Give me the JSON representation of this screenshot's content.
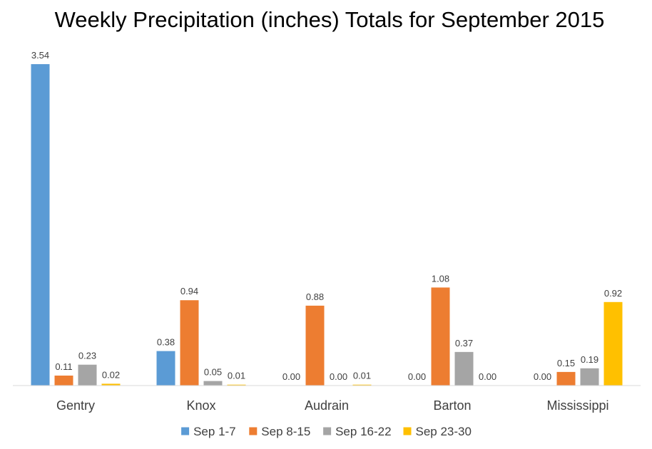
{
  "chart_data": {
    "type": "bar",
    "title": "Weekly Precipitation (inches) Totals for September 2015",
    "xlabel": "",
    "ylabel": "",
    "ylim": [
      0,
      3.54
    ],
    "grid": false,
    "legend_position": "bottom",
    "categories": [
      "Gentry",
      "Knox",
      "Audrain",
      "Barton",
      "Mississippi"
    ],
    "series": [
      {
        "name": "Sep 1-7",
        "color": "#5B9BD5",
        "values": [
          3.54,
          0.38,
          0.0,
          0.0,
          0.0
        ],
        "labels": [
          "3.54",
          "0.38",
          "0.00",
          "0.00",
          "0.00"
        ]
      },
      {
        "name": "Sep 8-15",
        "color": "#ED7D31",
        "values": [
          0.11,
          0.94,
          0.88,
          1.08,
          0.15
        ],
        "labels": [
          "0.11",
          "0.94",
          "0.88",
          "1.08",
          "0.15"
        ]
      },
      {
        "name": "Sep 16-22",
        "color": "#A5A5A5",
        "values": [
          0.23,
          0.05,
          0.0,
          0.37,
          0.19
        ],
        "labels": [
          "0.23",
          "0.05",
          "0.00",
          "0.37",
          "0.19"
        ]
      },
      {
        "name": "Sep 23-30",
        "color": "#FFC000",
        "values": [
          0.02,
          0.01,
          0.01,
          0.0,
          0.92
        ],
        "labels": [
          "0.02",
          "0.01",
          "0.01",
          "0.00",
          "0.92"
        ]
      }
    ]
  }
}
